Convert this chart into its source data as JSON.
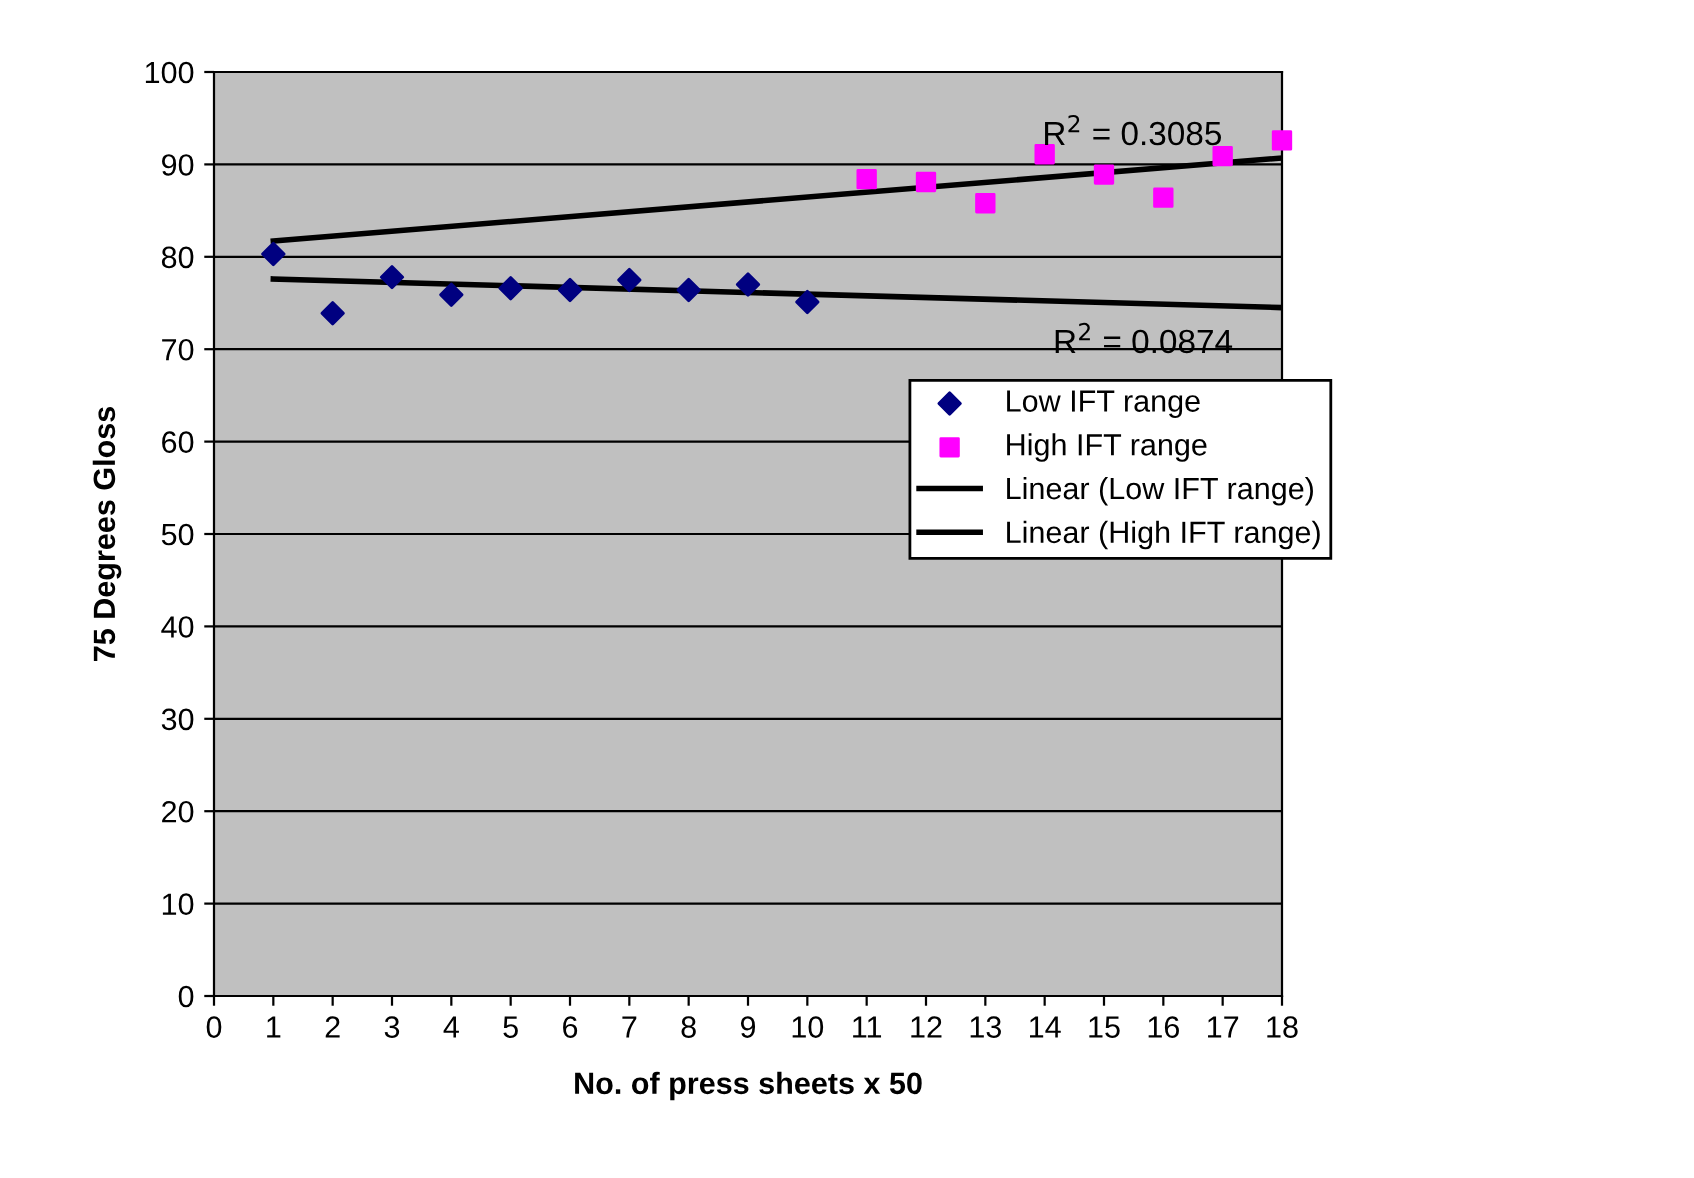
{
  "chart_data": {
    "type": "scatter",
    "xlabel": "No. of press sheets x 50",
    "ylabel": "75 Degrees Gloss",
    "series": [
      {
        "name": "Low IFT range",
        "marker": "diamond",
        "color": "#000080",
        "x": [
          1,
          2,
          3,
          4,
          5,
          6,
          7,
          8,
          9,
          10
        ],
        "values": [
          80.3,
          73.9,
          77.8,
          75.9,
          76.6,
          76.4,
          77.5,
          76.4,
          77.0,
          75.1
        ]
      },
      {
        "name": "High IFT range",
        "marker": "square",
        "color": "#ff00ff",
        "x": [
          11,
          12,
          13,
          14,
          15,
          16,
          17,
          18
        ],
        "values": [
          88.4,
          88.1,
          85.8,
          91.1,
          88.9,
          86.4,
          90.9,
          92.6
        ]
      },
      {
        "name": "Linear (Low IFT range)",
        "type": "line",
        "color": "#000000",
        "x": [
          1,
          18
        ],
        "values": [
          77.6,
          74.5
        ]
      },
      {
        "name": "Linear (High IFT range)",
        "type": "line",
        "color": "#000000",
        "x": [
          1,
          18
        ],
        "values": [
          81.7,
          90.7
        ]
      }
    ],
    "annotations": [
      "R$^{2}$ = 0.3085",
      "R$^{2}$ = 0.0874"
    ],
    "xlim": [
      0,
      18
    ],
    "xticks": [
      0,
      1,
      2,
      3,
      4,
      5,
      6,
      7,
      8,
      9,
      10,
      11,
      12,
      13,
      14,
      15,
      16,
      17,
      18
    ],
    "ylim": [
      0,
      100
    ],
    "yticks": [
      0,
      10,
      20,
      30,
      40,
      50,
      60,
      70,
      80,
      90,
      100
    ],
    "grid": "y",
    "legend": "right"
  }
}
